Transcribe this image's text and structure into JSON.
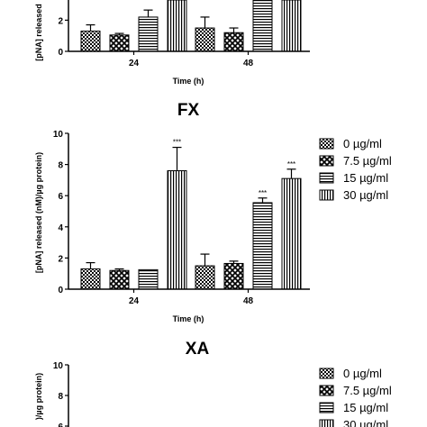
{
  "chart_data": [
    {
      "type": "bar",
      "title": "",
      "xlabel": "Time (h)",
      "ylabel": "[pNA] released",
      "ylim": [
        0,
        10
      ],
      "yticks": [
        0,
        2
      ],
      "categories": [
        "24",
        "48"
      ],
      "series": [
        {
          "name": "0 µg/ml",
          "values": [
            1.3,
            1.5
          ],
          "errors": [
            0.4,
            0.7
          ]
        },
        {
          "name": "7.5 µg/ml",
          "values": [
            1.05,
            1.2
          ],
          "errors": [
            0.1,
            0.3
          ]
        },
        {
          "name": "15 µg/ml",
          "values": [
            2.2,
            3.6
          ],
          "errors": [
            0.45,
            0.3
          ]
        },
        {
          "name": "30 µg/ml",
          "values": [
            3.7,
            3.7
          ],
          "errors": [
            0,
            0
          ]
        }
      ],
      "pattern": [
        "checker",
        "xhatch",
        "hlines",
        "vlines"
      ],
      "annotations": [],
      "legend": "none"
    },
    {
      "type": "bar",
      "title": "FX",
      "xlabel": "Time (h)",
      "ylabel": "[pNA] released (nM)/µg protein)",
      "ylim": [
        0,
        10
      ],
      "yticks": [
        0,
        2,
        4,
        6,
        8,
        10
      ],
      "categories": [
        "24",
        "48"
      ],
      "series": [
        {
          "name": "0 µg/ml",
          "values": [
            1.3,
            1.5
          ],
          "errors": [
            0.4,
            0.75
          ]
        },
        {
          "name": "7.5 µg/ml",
          "values": [
            1.2,
            1.65
          ],
          "errors": [
            0.1,
            0.15
          ]
        },
        {
          "name": "15 µg/ml",
          "values": [
            1.25,
            5.55
          ],
          "errors": [
            0,
            0.3
          ]
        },
        {
          "name": "30 µg/ml",
          "values": [
            7.6,
            7.1
          ],
          "errors": [
            1.5,
            0.6
          ]
        }
      ],
      "pattern": [
        "checker",
        "xhatch",
        "hlines",
        "vlines"
      ],
      "annotations": [
        {
          "text": "***",
          "category": "24",
          "series": 3
        },
        {
          "text": "***",
          "category": "48",
          "series": 2
        },
        {
          "text": "***",
          "category": "48",
          "series": 3
        }
      ],
      "legend": "right"
    },
    {
      "type": "bar",
      "title": "XA",
      "xlabel": "",
      "ylabel": ")/µg protein)",
      "ylim": [
        0,
        10
      ],
      "yticks": [
        6,
        8,
        10
      ],
      "categories": [],
      "series": [],
      "annotations": [],
      "legend": "right"
    }
  ],
  "legend_items": [
    {
      "label": "0 µg/ml",
      "pattern": "checker"
    },
    {
      "label": "7.5 µg/ml",
      "pattern": "xhatch"
    },
    {
      "label": "15 µg/ml",
      "pattern": "hlines"
    },
    {
      "label": "30 µg/ml",
      "pattern": "vlines"
    }
  ]
}
